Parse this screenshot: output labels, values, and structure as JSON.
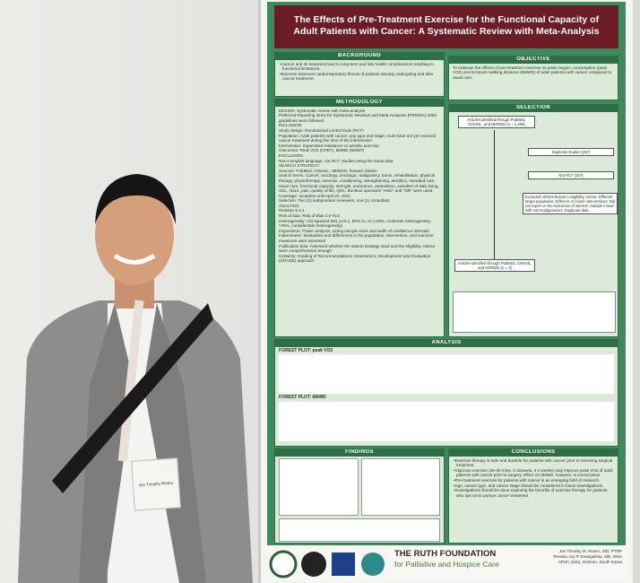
{
  "poster": {
    "title": "The Effects of Pre-Treatment Exercise for the Functional Capacity of Adult Patients with Cancer: A Systematic Review with Meta-Analysis",
    "background": {
      "heading": "BACKGROUND",
      "items": [
        "Cancer and its treatment lead to long-term and late health complications resulting to functional limitations.",
        "Exercise improves cardiorespiratory fitness of patients already undergoing and after cancer treatment."
      ]
    },
    "objective": {
      "heading": "OBJECTIVE",
      "text": "To evaluate the effects of pre-treatment exercise on peak oxygen consumption (peak VO2) and 6-minute walking distance (6MWD) of adult patients with cancer compared to usual care."
    },
    "methodology": {
      "heading": "METHODOLOGY",
      "lines": [
        "DESIGN: Systematic review with meta-analysis",
        "Preferred Reporting Items for Systematic Reviews and Meta-Analyses (PRISMA) 2020 guidelines were followed.",
        "INCLUSION:",
        "Study design: Randomized control trials (RCT)",
        "Population: Adult patients with cancer; any type and stage; must have not yet received cancer treatment during the time of the intervention",
        "Intervention: Supervised resistance or aerobic exercise",
        "Outcomes: Peak VO2 (CPET), 6MWD (6MWT)",
        "EXCLUSION:",
        "Not in English language, not RCT, studies using the same data",
        "SEARCH STRATEGY:",
        "Sources: PubMed, CINAHL, HERDIN, forward citation",
        "Search terms: Cancer, oncology, oncologic, malignancy, tumor, rehabilitation, physical therapy, physiotherapy, exercise, conditioning, strengthening, aerobics, standard care, usual care, functional capacity, strength, endurance, ambulation, activities of daily living, ADL, ADLs, pain, quality of life, QOL; Boolean operators \"AND\" and \"OR\" were used",
        "Coverage: Inception until April 20, 2021",
        "Selection: Two (2) independent reviewers, one (1) consultant",
        "ANALYSIS:",
        "RevMan 5.4.1",
        "Risk of bias: Risk of Bias 2.0 Tool",
        "Heterogeneity: Chi-squared test, p<0.1, 95% CI, I2 (>30%, moderate heterogeneity; >75%, considerable heterogeneity)",
        "Imprecision: Power analysis, noting sample sizes and width of confidence intervals",
        "Indirectness: Similarities and differences in the population, intervention, and outcome measures were assessed",
        "Publication bias: Assessed whether the search strategy used and the eligibility criteria were comprehensive enough",
        "Certainty: Grading of Recommendations Assessment, Development and Evaluation (GRADE) approach"
      ]
    },
    "selection": {
      "heading": "SELECTION",
      "boxes": [
        "Articles identified through PubMed, CINAHL, and HERDIN (n = 1,496)",
        "Duplicate studies (157)",
        "Not RCT (167)",
        "Excluded articles based in eligibility criteria: Different target population; Different or mixed interventions; Did not report on the outcomes of interest; Sample mixed with non-malignancies; Duplicate data",
        "Articles identified through PubMed, CINAHL, and HERDIN (n = 3)"
      ]
    },
    "analysis": {
      "heading": "ANALYSIS",
      "plot1": "FOREST PLOT: peak VO2",
      "plot2": "FOREST PLOT: 6MWD"
    },
    "findings": {
      "heading": "FINDINGS"
    },
    "conclusions": {
      "heading": "CONCLUSIONS",
      "items": [
        "Exercise therapy is safe and feasible for patients with cancer prior to receiving surgical treatment.",
        "Vigorous exercise (20-30 mins, 2-3x/week, 2-4 weeks) may improve peak VO2 of adult patients with cancer prior to surgery. Effect on 6MWD, however, is inconclusive.",
        "Pre-treatment exercise for patients with cancer is an emerging field of research.",
        "Age, cancer type, and cancer stage should be considered in future investigations.",
        "Investigations should be done exploring the benefits of exercise therapy for patients who opt not to pursue cancer treatment."
      ]
    },
    "foundation": {
      "name": "THE RUTH FOUNDATION",
      "subtitle": "for Palliative and Hospice Care"
    },
    "authors": [
      "Jon Timothy M. Rivero, MD, PTRP",
      "Teresita Joy P. Evangelista, MD, MHA",
      "APHC 2022, Incheon, South Korea"
    ]
  },
  "badge": {
    "name": "Jon Timothy Rivero"
  }
}
